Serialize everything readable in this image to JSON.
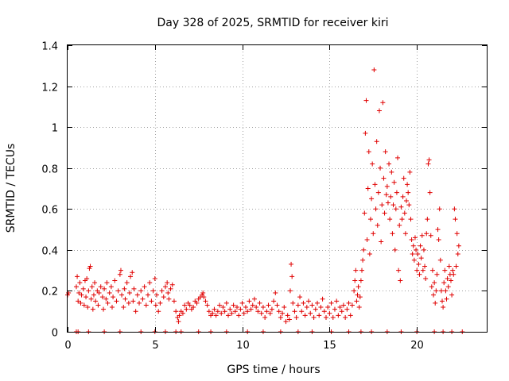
{
  "chart_data": {
    "type": "scatter",
    "title": "Day 328 of 2025, SRMTID for receiver kiri",
    "xlabel": "GPS time / hours",
    "ylabel": "SRMTID / TECUs",
    "xlim": [
      0,
      24
    ],
    "ylim": [
      0,
      1.4
    ],
    "xticks": [
      0,
      5,
      10,
      15,
      20
    ],
    "xtick_labels": [
      "0",
      "5",
      "10",
      "15",
      "20"
    ],
    "yticks": [
      0,
      0.2,
      0.4,
      0.6,
      0.8,
      1.0,
      1.2,
      1.4
    ],
    "ytick_labels": [
      "0",
      "0.2",
      "0.4",
      "0.6",
      "0.8",
      "1",
      "1.2",
      "1.4"
    ],
    "grid": true,
    "marker": "plus",
    "color": "#e00000",
    "series": [
      {
        "name": "SRMTID",
        "points": [
          [
            0.0,
            0.18
          ],
          [
            0.05,
            0.19
          ],
          [
            0.5,
            0.22
          ],
          [
            0.55,
            0.27
          ],
          [
            0.6,
            0.15
          ],
          [
            0.65,
            0.19
          ],
          [
            0.7,
            0.24
          ],
          [
            0.75,
            0.14
          ],
          [
            0.8,
            0.18
          ],
          [
            0.9,
            0.21
          ],
          [
            0.95,
            0.13
          ],
          [
            1.0,
            0.25
          ],
          [
            1.05,
            0.17
          ],
          [
            1.1,
            0.26
          ],
          [
            1.15,
            0.12
          ],
          [
            1.2,
            0.2
          ],
          [
            1.25,
            0.31
          ],
          [
            1.3,
            0.32
          ],
          [
            1.35,
            0.16
          ],
          [
            1.4,
            0.22
          ],
          [
            1.45,
            0.11
          ],
          [
            1.5,
            0.18
          ],
          [
            1.55,
            0.24
          ],
          [
            1.6,
            0.15
          ],
          [
            1.7,
            0.2
          ],
          [
            1.75,
            0.13
          ],
          [
            1.8,
            0.19
          ],
          [
            1.9,
            0.22
          ],
          [
            2.0,
            0.17
          ],
          [
            2.05,
            0.11
          ],
          [
            2.1,
            0.21
          ],
          [
            2.2,
            0.16
          ],
          [
            2.25,
            0.24
          ],
          [
            2.3,
            0.14
          ],
          [
            2.4,
            0.19
          ],
          [
            2.5,
            0.22
          ],
          [
            2.55,
            0.12
          ],
          [
            2.6,
            0.17
          ],
          [
            2.7,
            0.25
          ],
          [
            2.8,
            0.15
          ],
          [
            2.9,
            0.2
          ],
          [
            3.0,
            0.28
          ],
          [
            3.05,
            0.3
          ],
          [
            3.1,
            0.18
          ],
          [
            3.2,
            0.12
          ],
          [
            3.25,
            0.21
          ],
          [
            3.3,
            0.16
          ],
          [
            3.4,
            0.24
          ],
          [
            3.5,
            0.14
          ],
          [
            3.55,
            0.19
          ],
          [
            3.6,
            0.27
          ],
          [
            3.7,
            0.29
          ],
          [
            3.75,
            0.15
          ],
          [
            3.8,
            0.21
          ],
          [
            3.9,
            0.1
          ],
          [
            4.0,
            0.18
          ],
          [
            4.1,
            0.14
          ],
          [
            4.2,
            0.2
          ],
          [
            4.3,
            0.16
          ],
          [
            4.4,
            0.22
          ],
          [
            4.5,
            0.13
          ],
          [
            4.6,
            0.18
          ],
          [
            4.7,
            0.24
          ],
          [
            4.8,
            0.15
          ],
          [
            4.9,
            0.2
          ],
          [
            5.0,
            0.26
          ],
          [
            5.05,
            0.13
          ],
          [
            5.1,
            0.18
          ],
          [
            5.2,
            0.1
          ],
          [
            5.3,
            0.14
          ],
          [
            5.4,
            0.2
          ],
          [
            5.5,
            0.17
          ],
          [
            5.6,
            0.22
          ],
          [
            5.7,
            0.24
          ],
          [
            5.75,
            0.19
          ],
          [
            5.8,
            0.16
          ],
          [
            5.9,
            0.21
          ],
          [
            6.0,
            0.23
          ],
          [
            6.1,
            0.15
          ],
          [
            6.2,
            0.1
          ],
          [
            6.3,
            0.07
          ],
          [
            6.35,
            0.05
          ],
          [
            6.4,
            0.08
          ],
          [
            6.5,
            0.1
          ],
          [
            6.6,
            0.09
          ],
          [
            6.7,
            0.13
          ],
          [
            6.8,
            0.11
          ],
          [
            6.9,
            0.14
          ],
          [
            7.0,
            0.13
          ],
          [
            7.1,
            0.11
          ],
          [
            7.2,
            0.12
          ],
          [
            7.3,
            0.15
          ],
          [
            7.4,
            0.14
          ],
          [
            7.5,
            0.16
          ],
          [
            7.6,
            0.17
          ],
          [
            7.7,
            0.18
          ],
          [
            7.75,
            0.19
          ],
          [
            7.8,
            0.17
          ],
          [
            7.9,
            0.15
          ],
          [
            8.0,
            0.13
          ],
          [
            8.1,
            0.1
          ],
          [
            8.2,
            0.08
          ],
          [
            8.3,
            0.09
          ],
          [
            8.4,
            0.11
          ],
          [
            8.5,
            0.08
          ],
          [
            8.6,
            0.1
          ],
          [
            8.7,
            0.13
          ],
          [
            8.8,
            0.09
          ],
          [
            8.9,
            0.12
          ],
          [
            9.0,
            0.1
          ],
          [
            9.1,
            0.14
          ],
          [
            9.2,
            0.08
          ],
          [
            9.3,
            0.11
          ],
          [
            9.4,
            0.09
          ],
          [
            9.5,
            0.13
          ],
          [
            9.6,
            0.1
          ],
          [
            9.7,
            0.12
          ],
          [
            9.8,
            0.08
          ],
          [
            9.9,
            0.11
          ],
          [
            10.0,
            0.14
          ],
          [
            10.1,
            0.09
          ],
          [
            10.2,
            0.12
          ],
          [
            10.3,
            0.1
          ],
          [
            10.4,
            0.15
          ],
          [
            10.5,
            0.11
          ],
          [
            10.6,
            0.13
          ],
          [
            10.7,
            0.16
          ],
          [
            10.8,
            0.12
          ],
          [
            10.9,
            0.1
          ],
          [
            11.0,
            0.14
          ],
          [
            11.1,
            0.09
          ],
          [
            11.2,
            0.12
          ],
          [
            11.3,
            0.07
          ],
          [
            11.4,
            0.1
          ],
          [
            11.5,
            0.13
          ],
          [
            11.6,
            0.09
          ],
          [
            11.7,
            0.11
          ],
          [
            11.8,
            0.15
          ],
          [
            11.9,
            0.19
          ],
          [
            12.0,
            0.13
          ],
          [
            12.1,
            0.1
          ],
          [
            12.2,
            0.07
          ],
          [
            12.3,
            0.09
          ],
          [
            12.4,
            0.12
          ],
          [
            12.5,
            0.05
          ],
          [
            12.6,
            0.08
          ],
          [
            12.7,
            0.06
          ],
          [
            12.75,
            0.2
          ],
          [
            12.8,
            0.33
          ],
          [
            12.85,
            0.27
          ],
          [
            12.9,
            0.14
          ],
          [
            13.0,
            0.1
          ],
          [
            13.1,
            0.07
          ],
          [
            13.2,
            0.13
          ],
          [
            13.3,
            0.17
          ],
          [
            13.4,
            0.1
          ],
          [
            13.5,
            0.14
          ],
          [
            13.6,
            0.08
          ],
          [
            13.7,
            0.12
          ],
          [
            13.8,
            0.15
          ],
          [
            13.9,
            0.09
          ],
          [
            14.0,
            0.13
          ],
          [
            14.1,
            0.07
          ],
          [
            14.2,
            0.11
          ],
          [
            14.3,
            0.14
          ],
          [
            14.4,
            0.08
          ],
          [
            14.5,
            0.12
          ],
          [
            14.6,
            0.16
          ],
          [
            14.7,
            0.1
          ],
          [
            14.8,
            0.07
          ],
          [
            14.9,
            0.12
          ],
          [
            15.0,
            0.09
          ],
          [
            15.1,
            0.14
          ],
          [
            15.2,
            0.07
          ],
          [
            15.3,
            0.11
          ],
          [
            15.4,
            0.15
          ],
          [
            15.5,
            0.08
          ],
          [
            15.6,
            0.12
          ],
          [
            15.7,
            0.1
          ],
          [
            15.8,
            0.13
          ],
          [
            15.9,
            0.07
          ],
          [
            16.0,
            0.11
          ],
          [
            16.1,
            0.14
          ],
          [
            16.2,
            0.08
          ],
          [
            16.3,
            0.13
          ],
          [
            16.4,
            0.2
          ],
          [
            16.45,
            0.25
          ],
          [
            16.5,
            0.3
          ],
          [
            16.55,
            0.15
          ],
          [
            16.6,
            0.18
          ],
          [
            16.65,
            0.22
          ],
          [
            16.7,
            0.12
          ],
          [
            16.75,
            0.17
          ],
          [
            16.8,
            0.25
          ],
          [
            16.85,
            0.3
          ],
          [
            16.9,
            0.35
          ],
          [
            16.95,
            0.4
          ],
          [
            17.0,
            0.58
          ],
          [
            17.05,
            0.97
          ],
          [
            17.1,
            1.13
          ],
          [
            17.15,
            0.45
          ],
          [
            17.2,
            0.7
          ],
          [
            17.25,
            0.88
          ],
          [
            17.3,
            0.38
          ],
          [
            17.35,
            0.55
          ],
          [
            17.4,
            0.65
          ],
          [
            17.45,
            0.82
          ],
          [
            17.5,
            0.48
          ],
          [
            17.55,
            1.28
          ],
          [
            17.6,
            0.72
          ],
          [
            17.65,
            0.6
          ],
          [
            17.7,
            0.93
          ],
          [
            17.75,
            0.52
          ],
          [
            17.8,
            0.68
          ],
          [
            17.85,
            1.08
          ],
          [
            17.9,
            0.8
          ],
          [
            17.95,
            0.44
          ],
          [
            18.0,
            0.62
          ],
          [
            18.05,
            1.12
          ],
          [
            18.1,
            0.75
          ],
          [
            18.15,
            0.58
          ],
          [
            18.2,
            0.88
          ],
          [
            18.25,
            0.67
          ],
          [
            18.3,
            0.71
          ],
          [
            18.35,
            0.63
          ],
          [
            18.4,
            0.82
          ],
          [
            18.45,
            0.55
          ],
          [
            18.5,
            0.66
          ],
          [
            18.55,
            0.78
          ],
          [
            18.6,
            0.48
          ],
          [
            18.65,
            0.62
          ],
          [
            18.7,
            0.73
          ],
          [
            18.75,
            0.4
          ],
          [
            18.8,
            0.6
          ],
          [
            18.85,
            0.68
          ],
          [
            18.9,
            0.85
          ],
          [
            18.95,
            0.3
          ],
          [
            19.0,
            0.52
          ],
          [
            19.05,
            0.25
          ],
          [
            19.1,
            0.61
          ],
          [
            19.15,
            0.55
          ],
          [
            19.2,
            0.66
          ],
          [
            19.25,
            0.75
          ],
          [
            19.3,
            0.58
          ],
          [
            19.35,
            0.48
          ],
          [
            19.4,
            0.64
          ],
          [
            19.45,
            0.72
          ],
          [
            19.5,
            0.68
          ],
          [
            19.55,
            0.62
          ],
          [
            19.6,
            0.78
          ],
          [
            19.65,
            0.55
          ],
          [
            19.7,
            0.45
          ],
          [
            19.75,
            0.38
          ],
          [
            19.8,
            0.42
          ],
          [
            19.85,
            0.35
          ],
          [
            19.9,
            0.46
          ],
          [
            19.95,
            0.4
          ],
          [
            20.0,
            0.3
          ],
          [
            20.05,
            0.38
          ],
          [
            20.1,
            0.33
          ],
          [
            20.15,
            0.28
          ],
          [
            20.2,
            0.42
          ],
          [
            20.25,
            0.36
          ],
          [
            20.3,
            0.47
          ],
          [
            20.35,
            0.3
          ],
          [
            20.4,
            0.4
          ],
          [
            20.45,
            0.32
          ],
          [
            20.5,
            0.26
          ],
          [
            20.55,
            0.48
          ],
          [
            20.6,
            0.55
          ],
          [
            20.65,
            0.82
          ],
          [
            20.7,
            0.84
          ],
          [
            20.75,
            0.68
          ],
          [
            20.8,
            0.47
          ],
          [
            20.85,
            0.22
          ],
          [
            20.9,
            0.3
          ],
          [
            20.95,
            0.18
          ],
          [
            21.0,
            0.24
          ],
          [
            21.05,
            0.14
          ],
          [
            21.1,
            0.2
          ],
          [
            21.15,
            0.28
          ],
          [
            21.2,
            0.5
          ],
          [
            21.25,
            0.45
          ],
          [
            21.3,
            0.6
          ],
          [
            21.35,
            0.35
          ],
          [
            21.4,
            0.2
          ],
          [
            21.45,
            0.15
          ],
          [
            21.5,
            0.12
          ],
          [
            21.55,
            0.24
          ],
          [
            21.6,
            0.3
          ],
          [
            21.65,
            0.2
          ],
          [
            21.7,
            0.16
          ],
          [
            21.75,
            0.26
          ],
          [
            21.8,
            0.22
          ],
          [
            21.85,
            0.32
          ],
          [
            21.9,
            0.28
          ],
          [
            21.95,
            0.25
          ],
          [
            22.0,
            0.18
          ],
          [
            22.05,
            0.3
          ],
          [
            22.1,
            0.28
          ],
          [
            22.15,
            0.6
          ],
          [
            22.2,
            0.55
          ],
          [
            22.25,
            0.32
          ],
          [
            22.3,
            0.48
          ],
          [
            22.35,
            0.38
          ],
          [
            22.4,
            0.42
          ]
        ],
        "baseline_markers_x": [
          0.5,
          0.6,
          1.2,
          2.1,
          3.0,
          4.2,
          5.0,
          5.6,
          6.2,
          6.5,
          7.5,
          8.2,
          9.1,
          10.3,
          11.2,
          12.2,
          13.2,
          14.0,
          15.1,
          16.1,
          16.8,
          17.4,
          18.3,
          19.1,
          20.0,
          21.0,
          21.5,
          22.0,
          22.6
        ]
      }
    ]
  }
}
